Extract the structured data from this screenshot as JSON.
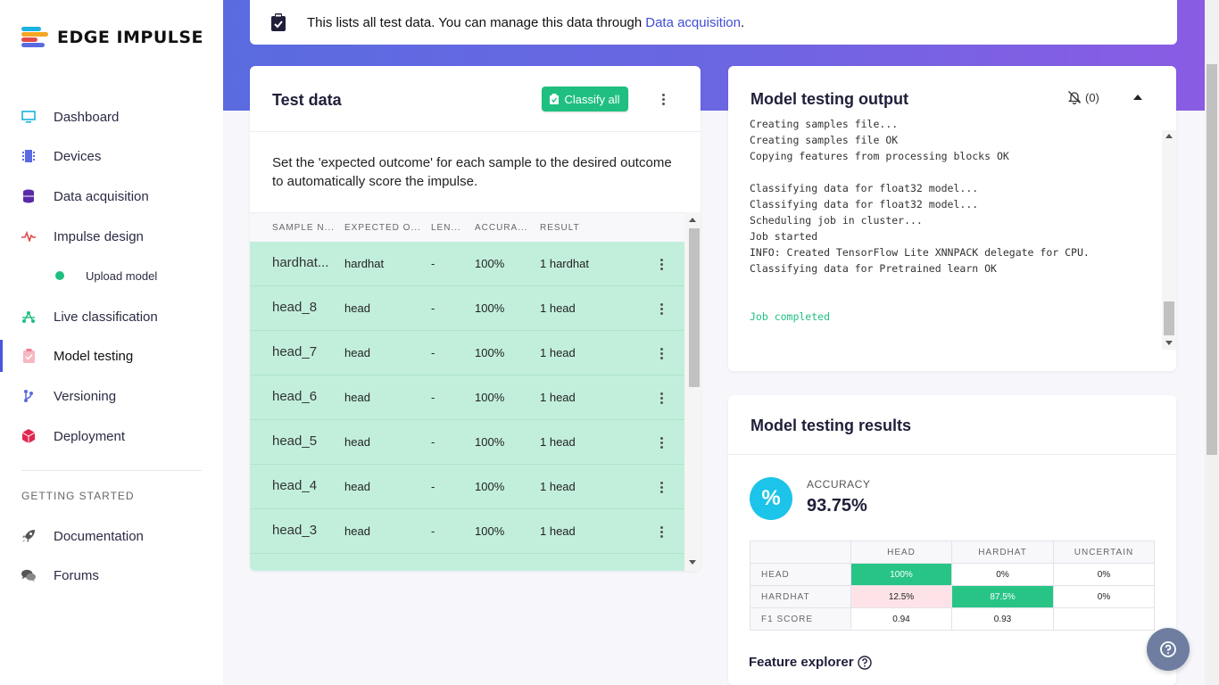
{
  "brand": {
    "name": "EDGE IMPULSE"
  },
  "sidebar": {
    "items": [
      {
        "label": "Dashboard",
        "icon": "monitor-icon",
        "color": "#1bb3e0"
      },
      {
        "label": "Devices",
        "icon": "chip-icon",
        "color": "#5a6be0"
      },
      {
        "label": "Data acquisition",
        "icon": "database-icon",
        "color": "#5b2aa6"
      },
      {
        "label": "Impulse design",
        "icon": "pulse-icon",
        "color": "#e24a4a"
      },
      {
        "label": "Upload model",
        "icon": "dot-icon",
        "color": "#1fbf80"
      },
      {
        "label": "Live classification",
        "icon": "network-icon",
        "color": "#1fbf80"
      },
      {
        "label": "Model testing",
        "icon": "clipboard-check-icon",
        "color": "#f07c8e"
      },
      {
        "label": "Versioning",
        "icon": "branch-icon",
        "color": "#5a6be0"
      },
      {
        "label": "Deployment",
        "icon": "cube-icon",
        "color": "#e2264d"
      }
    ],
    "section_label": "GETTING STARTED",
    "footer_items": [
      {
        "label": "Documentation",
        "icon": "rocket-icon"
      },
      {
        "label": "Forums",
        "icon": "chat-icon"
      }
    ]
  },
  "notice": {
    "text": "This lists all test data. You can manage this data through",
    "link": "Data acquisition",
    "suffix": "."
  },
  "test_data": {
    "title": "Test data",
    "classify_button": "Classify all",
    "description": "Set the 'expected outcome' for each sample to the desired outcome to automatically score the impulse.",
    "columns": [
      "SAMPLE N...",
      "EXPECTED O...",
      "LEN...",
      "ACCURA...",
      "RESULT"
    ],
    "rows": [
      {
        "sample": "hardhat...",
        "expected": "hardhat",
        "length": "-",
        "accuracy": "100%",
        "result": "1 hardhat"
      },
      {
        "sample": "head_8",
        "expected": "head",
        "length": "-",
        "accuracy": "100%",
        "result": "1 head"
      },
      {
        "sample": "head_7",
        "expected": "head",
        "length": "-",
        "accuracy": "100%",
        "result": "1 head"
      },
      {
        "sample": "head_6",
        "expected": "head",
        "length": "-",
        "accuracy": "100%",
        "result": "1 head"
      },
      {
        "sample": "head_5",
        "expected": "head",
        "length": "-",
        "accuracy": "100%",
        "result": "1 head"
      },
      {
        "sample": "head_4",
        "expected": "head",
        "length": "-",
        "accuracy": "100%",
        "result": "1 head"
      },
      {
        "sample": "head_3",
        "expected": "head",
        "length": "-",
        "accuracy": "100%",
        "result": "1 head"
      },
      {
        "sample": "",
        "expected": "",
        "length": "",
        "accuracy": "",
        "result": ""
      }
    ]
  },
  "output": {
    "title": "Model testing output",
    "notification_count": "(0)",
    "log_lines": [
      "Creating samples file...",
      "Creating samples file OK",
      "Copying features from processing blocks OK",
      "",
      "Classifying data for float32 model...",
      "Classifying data for float32 model...",
      "Scheduling job in cluster...",
      "Job started",
      "INFO: Created TensorFlow Lite XNNPACK delegate for CPU.",
      "Classifying data for Pretrained learn OK",
      "",
      ""
    ],
    "completed_line": "Job completed"
  },
  "results": {
    "title": "Model testing results",
    "accuracy_label": "ACCURACY",
    "accuracy_value": "93.75%",
    "icon_glyph": "%",
    "matrix": {
      "columns": [
        "HEAD",
        "HARDHAT",
        "UNCERTAIN"
      ],
      "rows": [
        {
          "label": "HEAD",
          "values": [
            "100%",
            "0%",
            "0%"
          ]
        },
        {
          "label": "HARDHAT",
          "values": [
            "12.5%",
            "87.5%",
            "0%"
          ]
        },
        {
          "label": "F1 SCORE",
          "values": [
            "0.94",
            "0.93",
            ""
          ]
        }
      ]
    },
    "feature_explorer": "Feature explorer"
  },
  "colors": {
    "accent": "#4a54e1",
    "success": "#1fbf80",
    "row_bg": "#c2efdc",
    "error_bg": "#fde3e7"
  }
}
